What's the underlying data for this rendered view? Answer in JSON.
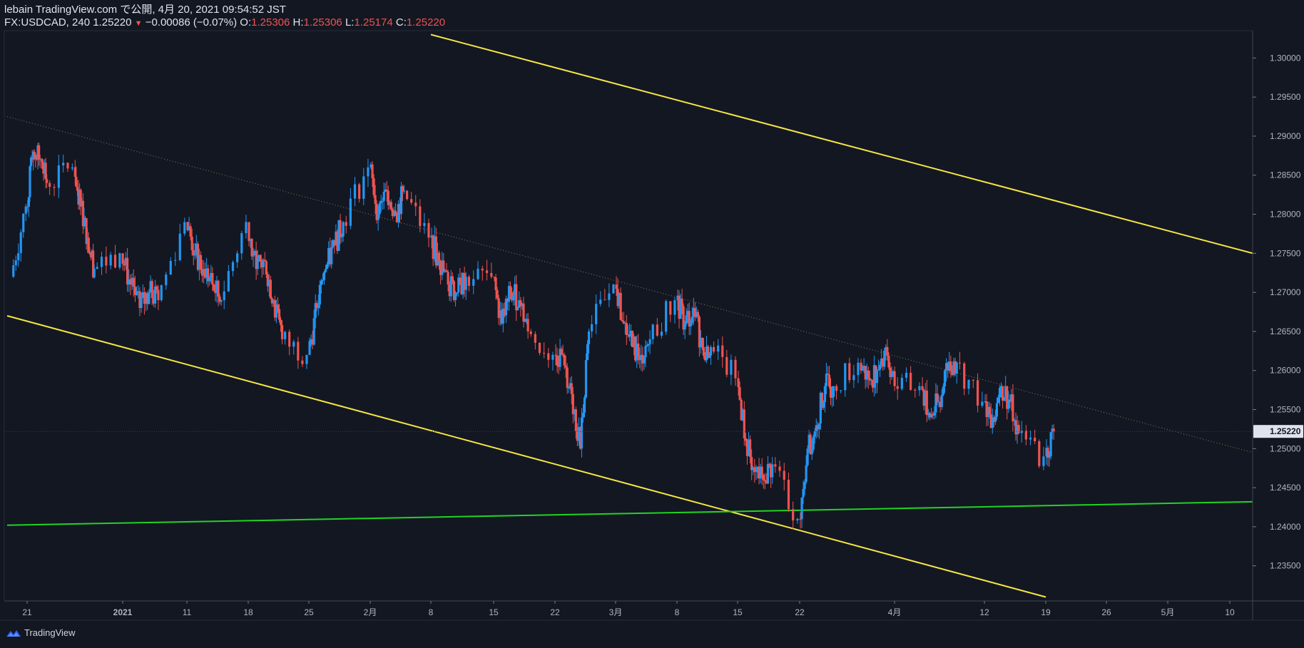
{
  "header": {
    "line1": "lebain TradingView.com で公開, 4月 20, 2021 09:54:52 JST",
    "symbol": "FX:USDCAD, 240",
    "last": "1.25220",
    "change": "−0.00086 (−0.07%)",
    "o_label": "O:",
    "o": "1.25306",
    "h_label": "H:",
    "h": "1.25306",
    "l_label": "L:",
    "l": "1.25174",
    "c_label": "C:",
    "c": "1.25220"
  },
  "footer": {
    "brand": "TradingView"
  },
  "colors": {
    "background": "#131722",
    "up": "#2196f3",
    "down": "#ef5350",
    "channel": "#f5e642",
    "support": "#22d422",
    "midline": "#8a7a55",
    "price_tag": "#e0e3eb"
  },
  "chart_data": {
    "type": "candlestick",
    "symbol": "FX:USDCAD",
    "interval": "240",
    "last_price": 1.2522,
    "price_axis": {
      "ylim": [
        1.2305,
        1.3035
      ],
      "ticks": [
        "1.30000",
        "1.29500",
        "1.29000",
        "1.28500",
        "1.28000",
        "1.27500",
        "1.27000",
        "1.26500",
        "1.26000",
        "1.25500",
        "1.25000",
        "1.24500",
        "1.24000",
        "1.23500"
      ],
      "tick_values": [
        1.3,
        1.295,
        1.29,
        1.285,
        1.28,
        1.275,
        1.27,
        1.265,
        1.26,
        1.255,
        1.25,
        1.245,
        1.24,
        1.235
      ]
    },
    "time_axis": {
      "labels": [
        "21",
        "2021",
        "11",
        "18",
        "25",
        "2月",
        "8",
        "15",
        "22",
        "3月",
        "8",
        "15",
        "22",
        "4月",
        "12",
        "19",
        "26",
        "5月",
        "10"
      ]
    },
    "daily_closes_approx": [
      {
        "d": "12-18",
        "v": 1.272
      },
      {
        "d": "12-21",
        "v": 1.281
      },
      {
        "d": "12-22",
        "v": 1.288
      },
      {
        "d": "12-23",
        "v": 1.287
      },
      {
        "d": "12-24",
        "v": 1.284
      },
      {
        "d": "12-28",
        "v": 1.286
      },
      {
        "d": "12-29",
        "v": 1.281
      },
      {
        "d": "12-30",
        "v": 1.277
      },
      {
        "d": "12-31",
        "v": 1.273
      },
      {
        "d": "01-04",
        "v": 1.275
      },
      {
        "d": "01-05",
        "v": 1.271
      },
      {
        "d": "01-06",
        "v": 1.268
      },
      {
        "d": "01-07",
        "v": 1.27
      },
      {
        "d": "01-08",
        "v": 1.269
      },
      {
        "d": "01-11",
        "v": 1.279
      },
      {
        "d": "01-12",
        "v": 1.275
      },
      {
        "d": "01-13",
        "v": 1.273
      },
      {
        "d": "01-14",
        "v": 1.271
      },
      {
        "d": "01-15",
        "v": 1.269
      },
      {
        "d": "01-18",
        "v": 1.279
      },
      {
        "d": "01-19",
        "v": 1.273
      },
      {
        "d": "01-20",
        "v": 1.274
      },
      {
        "d": "01-21",
        "v": 1.269
      },
      {
        "d": "01-22",
        "v": 1.264
      },
      {
        "d": "01-25",
        "v": 1.262
      },
      {
        "d": "01-26",
        "v": 1.268
      },
      {
        "d": "01-27",
        "v": 1.273
      },
      {
        "d": "01-28",
        "v": 1.276
      },
      {
        "d": "01-29",
        "v": 1.279
      },
      {
        "d": "02-01",
        "v": 1.286
      },
      {
        "d": "02-02",
        "v": 1.28
      },
      {
        "d": "02-03",
        "v": 1.283
      },
      {
        "d": "02-04",
        "v": 1.28
      },
      {
        "d": "02-05",
        "v": 1.283
      },
      {
        "d": "02-08",
        "v": 1.277
      },
      {
        "d": "02-09",
        "v": 1.274
      },
      {
        "d": "02-10",
        "v": 1.271
      },
      {
        "d": "02-11",
        "v": 1.27
      },
      {
        "d": "02-12",
        "v": 1.272
      },
      {
        "d": "02-15",
        "v": 1.272
      },
      {
        "d": "02-16",
        "v": 1.266
      },
      {
        "d": "02-17",
        "v": 1.27
      },
      {
        "d": "02-18",
        "v": 1.269
      },
      {
        "d": "02-19",
        "v": 1.265
      },
      {
        "d": "02-22",
        "v": 1.262
      },
      {
        "d": "02-23",
        "v": 1.262
      },
      {
        "d": "02-24",
        "v": 1.257
      },
      {
        "d": "02-25",
        "v": 1.25
      },
      {
        "d": "02-26",
        "v": 1.265
      },
      {
        "d": "03-01",
        "v": 1.271
      },
      {
        "d": "03-02",
        "v": 1.266
      },
      {
        "d": "03-03",
        "v": 1.263
      },
      {
        "d": "03-04",
        "v": 1.262
      },
      {
        "d": "03-05",
        "v": 1.264
      },
      {
        "d": "03-08",
        "v": 1.269
      },
      {
        "d": "03-09",
        "v": 1.266
      },
      {
        "d": "03-10",
        "v": 1.268
      },
      {
        "d": "03-11",
        "v": 1.263
      },
      {
        "d": "03-12",
        "v": 1.263
      },
      {
        "d": "03-15",
        "v": 1.259
      },
      {
        "d": "03-16",
        "v": 1.251
      },
      {
        "d": "03-17",
        "v": 1.247
      },
      {
        "d": "03-18",
        "v": 1.246
      },
      {
        "d": "03-19",
        "v": 1.248
      },
      {
        "d": "03-22",
        "v": 1.241
      },
      {
        "d": "03-23",
        "v": 1.25
      },
      {
        "d": "03-24",
        "v": 1.253
      },
      {
        "d": "03-25",
        "v": 1.258
      },
      {
        "d": "03-26",
        "v": 1.258
      },
      {
        "d": "03-29",
        "v": 1.261
      },
      {
        "d": "03-30",
        "v": 1.259
      },
      {
        "d": "03-31",
        "v": 1.26
      },
      {
        "d": "04-01",
        "v": 1.263
      },
      {
        "d": "04-02",
        "v": 1.258
      },
      {
        "d": "04-05",
        "v": 1.258
      },
      {
        "d": "04-06",
        "v": 1.254
      },
      {
        "d": "04-07",
        "v": 1.256
      },
      {
        "d": "04-08",
        "v": 1.26
      },
      {
        "d": "04-09",
        "v": 1.261
      },
      {
        "d": "04-12",
        "v": 1.256
      },
      {
        "d": "04-13",
        "v": 1.254
      },
      {
        "d": "04-14",
        "v": 1.258
      },
      {
        "d": "04-15",
        "v": 1.256
      },
      {
        "d": "04-16",
        "v": 1.252
      },
      {
        "d": "04-19",
        "v": 1.249
      },
      {
        "d": "04-20",
        "v": 1.2522
      }
    ],
    "trendlines": [
      {
        "name": "channel-upper",
        "from": {
          "d": "02-08",
          "v": 1.303
        },
        "to": {
          "d": "05-14",
          "v": 1.275
        }
      },
      {
        "name": "channel-lower",
        "from": {
          "d": "12-17",
          "v": 1.267
        },
        "to": {
          "d": "04-19",
          "v": 1.231
        }
      },
      {
        "name": "midline",
        "from": {
          "d": "12-17",
          "v": 1.2925
        },
        "to": {
          "d": "05-14",
          "v": 1.2495
        }
      },
      {
        "name": "support",
        "from": {
          "d": "12-17",
          "v": 1.2402
        },
        "to": {
          "d": "05-14",
          "v": 1.2432
        }
      }
    ]
  }
}
